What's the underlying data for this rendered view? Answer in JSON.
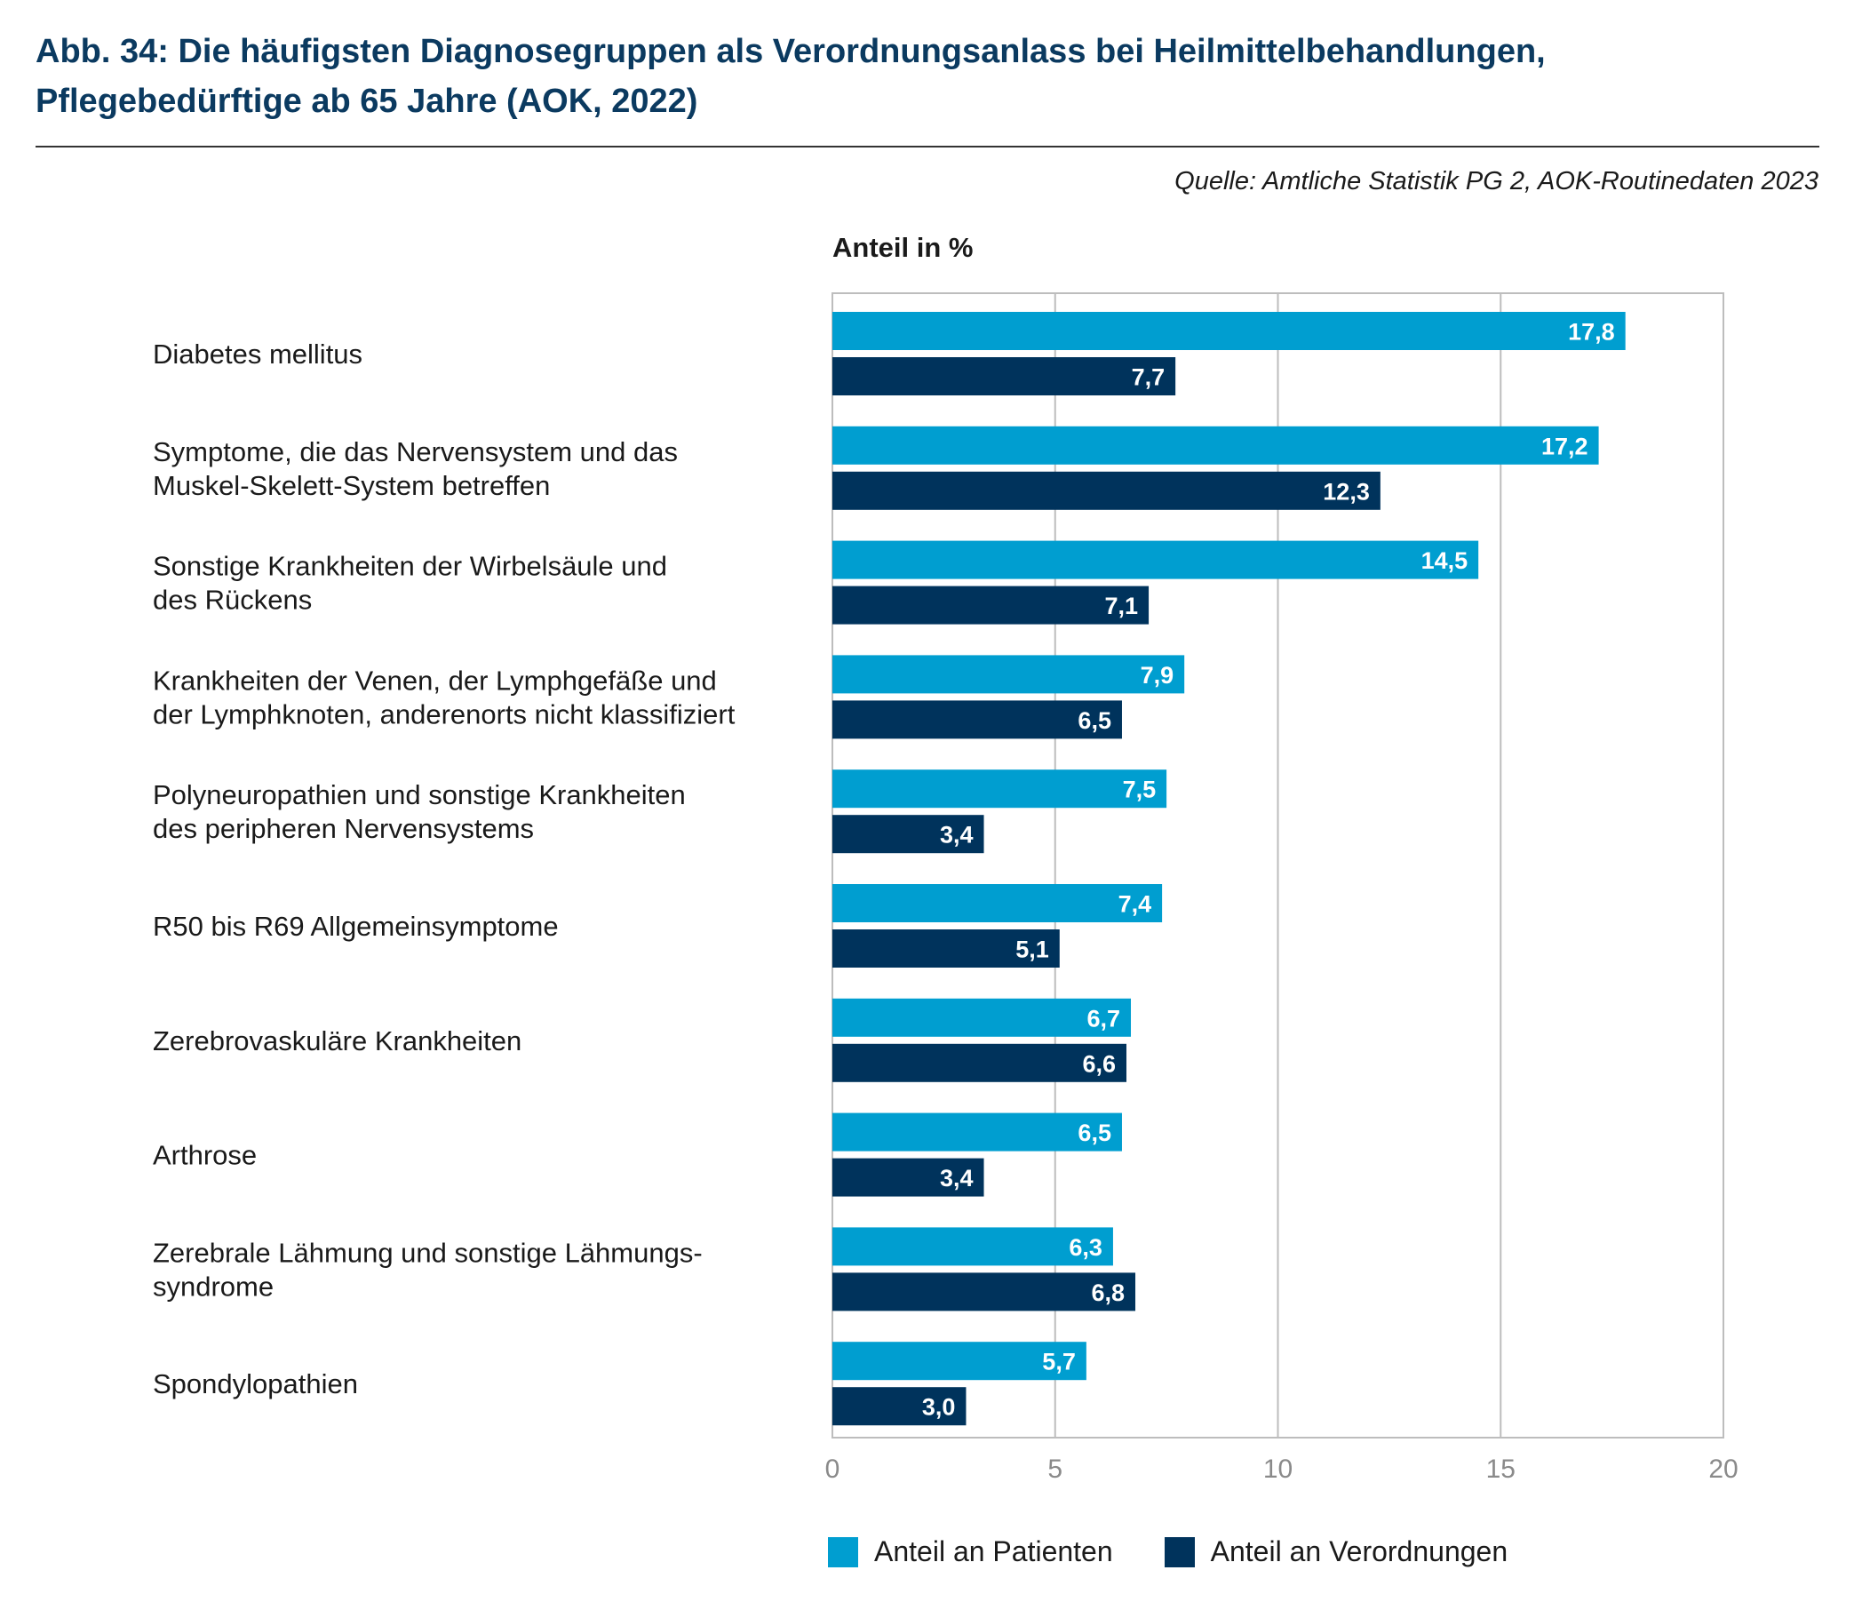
{
  "header": {
    "title_line1": "Abb. 34: Die häufigsten Diagnosegruppen als Verordnungsanlass bei Heilmittelbehandlungen,",
    "title_line2": "Pflegebedürftige ab 65 Jahre (AOK, 2022)",
    "source": "Quelle: Amtliche Statistik PG 2, AOK-Routinedaten 2023"
  },
  "colors": {
    "patients": "#009ed0",
    "prescriptions": "#00335c",
    "title": "#0b3a60"
  },
  "chart_data": {
    "type": "bar",
    "orientation": "horizontal",
    "ylabel": "Anteil in %",
    "xlim": [
      0,
      20
    ],
    "xticks": [
      0,
      5,
      10,
      15,
      20
    ],
    "grid": true,
    "legend_position": "bottom",
    "categories": [
      [
        "Diabetes mellitus"
      ],
      [
        "Symptome, die das Nervensystem und das",
        "Muskel-Skelett-System betreffen"
      ],
      [
        "Sonstige Krankheiten der Wirbelsäule und",
        "des Rückens"
      ],
      [
        "Krankheiten der Venen, der Lymphgefäße und",
        "der Lymphknoten, anderenorts nicht klassifiziert"
      ],
      [
        "Polyneuropathien und sonstige Krankheiten",
        "des peripheren Nervensystems"
      ],
      [
        "R50 bis R69 Allgemeinsymptome"
      ],
      [
        "Zerebrovaskuläre Krankheiten"
      ],
      [
        "Arthrose"
      ],
      [
        "Zerebrale Lähmung und sonstige Lähmungs-",
        "syndrome"
      ],
      [
        "Spondylopathien"
      ]
    ],
    "series": [
      {
        "name": "Anteil an Patienten",
        "values": [
          17.8,
          17.2,
          14.5,
          7.9,
          7.5,
          7.4,
          6.7,
          6.5,
          6.3,
          5.7
        ],
        "labels": [
          "17,8",
          "17,2",
          "14,5",
          "7,9",
          "7,5",
          "7,4",
          "6,7",
          "6,5",
          "6,3",
          "5,7"
        ]
      },
      {
        "name": "Anteil an Verordnungen",
        "values": [
          7.7,
          12.3,
          7.1,
          6.5,
          3.4,
          5.1,
          6.6,
          3.4,
          6.8,
          3.0
        ],
        "labels": [
          "7,7",
          "12,3",
          "7,1",
          "6,5",
          "3,4",
          "5,1",
          "6,6",
          "3,4",
          "6,8",
          "3,0"
        ]
      }
    ]
  }
}
